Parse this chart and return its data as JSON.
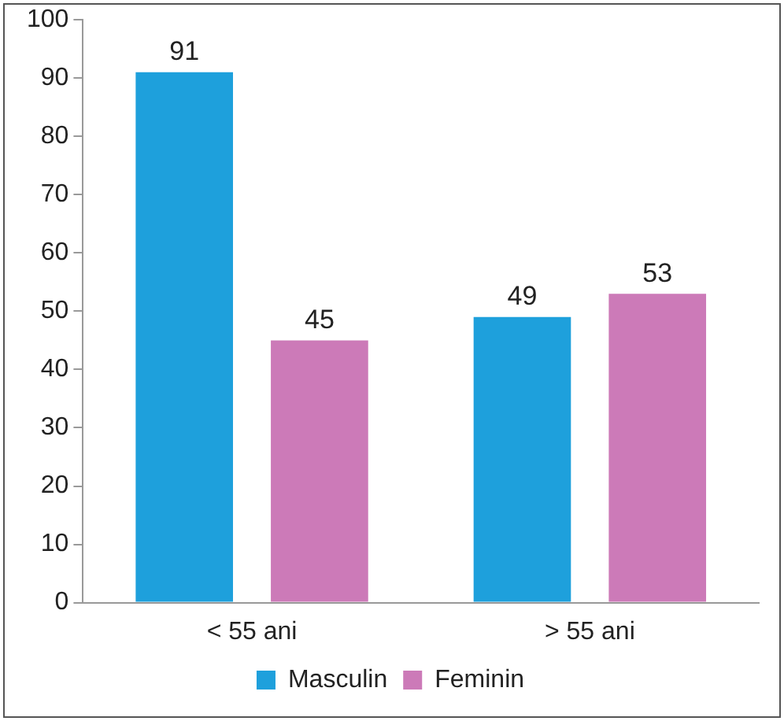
{
  "chart_data": {
    "type": "bar",
    "categories": [
      "< 55 ani",
      "> 55 ani"
    ],
    "series": [
      {
        "name": "Masculin",
        "color": "#1ea0dc",
        "values": [
          91,
          49
        ]
      },
      {
        "name": "Feminin",
        "color": "#cc7ab8",
        "values": [
          45,
          53
        ]
      }
    ],
    "ylim": [
      0,
      100
    ],
    "yticks": [
      0,
      10,
      20,
      30,
      40,
      50,
      60,
      70,
      80,
      90,
      100
    ],
    "grid": false,
    "legend": "bottom",
    "data_labels": true
  }
}
